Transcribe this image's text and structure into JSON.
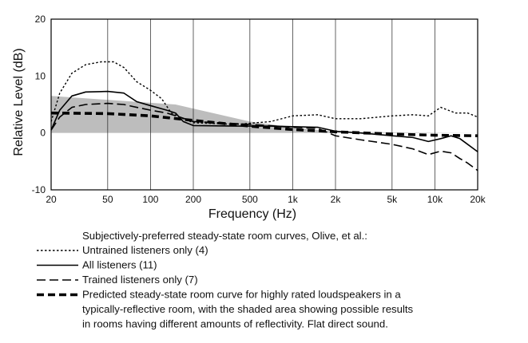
{
  "chart_data": {
    "type": "line",
    "xlabel": "Frequency (Hz)",
    "ylabel": "Relative Level (dB)",
    "xscale": "log",
    "xlim": [
      20,
      20000
    ],
    "ylim": [
      -10,
      20
    ],
    "x_ticks": [
      {
        "value": 20,
        "label": "20"
      },
      {
        "value": 50,
        "label": "50"
      },
      {
        "value": 100,
        "label": "100"
      },
      {
        "value": 200,
        "label": "200"
      },
      {
        "value": 500,
        "label": "500"
      },
      {
        "value": 1000,
        "label": "1k"
      },
      {
        "value": 2000,
        "label": "2k"
      },
      {
        "value": 5000,
        "label": "5k"
      },
      {
        "value": 10000,
        "label": "10k"
      },
      {
        "value": 20000,
        "label": "20k"
      }
    ],
    "y_ticks": [
      {
        "value": 20,
        "label": "20"
      },
      {
        "value": 10,
        "label": "10"
      },
      {
        "value": 0,
        "label": "0"
      },
      {
        "value": -10,
        "label": "-10"
      }
    ],
    "grid": "vertical",
    "shaded_band": {
      "color": "#bdbdbd",
      "upper": [
        [
          20,
          6.5
        ],
        [
          150,
          5.0
        ],
        [
          500,
          2.0
        ],
        [
          1000,
          1.0
        ],
        [
          2000,
          0.2
        ],
        [
          20000,
          0
        ]
      ],
      "lower": [
        [
          20,
          0
        ],
        [
          20000,
          0
        ]
      ]
    },
    "series": [
      {
        "name": "Untrained listeners only (4)",
        "style": "dotted",
        "color": "#000000",
        "points": [
          [
            20,
            2
          ],
          [
            23,
            7
          ],
          [
            28,
            10.5
          ],
          [
            35,
            12
          ],
          [
            45,
            12.5
          ],
          [
            55,
            12.5
          ],
          [
            65,
            11.5
          ],
          [
            80,
            9
          ],
          [
            100,
            7.5
          ],
          [
            120,
            6
          ],
          [
            140,
            3.5
          ],
          [
            170,
            2.5
          ],
          [
            200,
            1.8
          ],
          [
            400,
            1.5
          ],
          [
            700,
            2
          ],
          [
            1000,
            3
          ],
          [
            1500,
            3.2
          ],
          [
            2000,
            2.5
          ],
          [
            3000,
            2.5
          ],
          [
            5000,
            3
          ],
          [
            7000,
            3.2
          ],
          [
            9000,
            3
          ],
          [
            11000,
            4.5
          ],
          [
            14000,
            3.5
          ],
          [
            17000,
            3.5
          ],
          [
            20000,
            2.8
          ]
        ]
      },
      {
        "name": "All listeners (11)",
        "style": "solid",
        "color": "#000000",
        "points": [
          [
            20,
            0.5
          ],
          [
            23,
            4
          ],
          [
            28,
            6.5
          ],
          [
            35,
            7.2
          ],
          [
            50,
            7.3
          ],
          [
            65,
            7
          ],
          [
            80,
            5.5
          ],
          [
            100,
            4.8
          ],
          [
            130,
            4
          ],
          [
            150,
            3.5
          ],
          [
            170,
            2
          ],
          [
            200,
            1.3
          ],
          [
            400,
            1.2
          ],
          [
            700,
            1.2
          ],
          [
            1000,
            1.1
          ],
          [
            1500,
            1
          ],
          [
            2000,
            0.3
          ],
          [
            3000,
            0
          ],
          [
            5000,
            -0.5
          ],
          [
            7000,
            -0.8
          ],
          [
            9000,
            -1.5
          ],
          [
            11000,
            -1
          ],
          [
            13000,
            -0.5
          ],
          [
            15000,
            -1
          ],
          [
            17000,
            -2
          ],
          [
            20000,
            -3.3
          ]
        ]
      },
      {
        "name": "Trained listeners only (7)",
        "style": "dashed",
        "color": "#000000",
        "points": [
          [
            20,
            0.5
          ],
          [
            23,
            2.8
          ],
          [
            28,
            4.5
          ],
          [
            35,
            5
          ],
          [
            50,
            5.2
          ],
          [
            65,
            5
          ],
          [
            80,
            4.5
          ],
          [
            100,
            4
          ],
          [
            130,
            3.5
          ],
          [
            160,
            2.8
          ],
          [
            200,
            2
          ],
          [
            300,
            1.8
          ],
          [
            500,
            1.5
          ],
          [
            1000,
            1
          ],
          [
            1500,
            0.8
          ],
          [
            2000,
            -0.5
          ],
          [
            3000,
            -1.2
          ],
          [
            5000,
            -2
          ],
          [
            7000,
            -2.8
          ],
          [
            9000,
            -3.8
          ],
          [
            11000,
            -3.2
          ],
          [
            13000,
            -3.5
          ],
          [
            15000,
            -4.5
          ],
          [
            17000,
            -5.3
          ],
          [
            20000,
            -6.6
          ]
        ]
      },
      {
        "name": "Predicted steady-state room curve for highly rated loudspeakers in a typically-reflective room, with the shaded area showing possible results in rooms having different amounts of reflectivity.  Flat direct sound.",
        "style": "heavy-dashed",
        "color": "#000000",
        "points": [
          [
            20,
            3.5
          ],
          [
            50,
            3.4
          ],
          [
            100,
            3.0
          ],
          [
            200,
            2.2
          ],
          [
            500,
            1.2
          ],
          [
            1000,
            0.6
          ],
          [
            2000,
            0.2
          ],
          [
            5000,
            -0.2
          ],
          [
            10000,
            -0.4
          ],
          [
            20000,
            -0.5
          ]
        ]
      }
    ],
    "legend": {
      "placement": "below",
      "heading": "Subjectively-preferred steady-state room curves, Olive, et al.:",
      "entries": [
        {
          "style": "dotted",
          "lines": [
            "Untrained listeners only (4)"
          ]
        },
        {
          "style": "solid",
          "lines": [
            "All listeners (11)"
          ]
        },
        {
          "style": "dashed",
          "lines": [
            "Trained listeners only (7)"
          ]
        },
        {
          "style": "heavy-dashed",
          "lines": [
            "Predicted steady-state room curve for highly rated loudspeakers in a",
            "typically-reflective room, with the shaded area showing possible results",
            "in rooms having different amounts of reflectivity.  Flat direct sound."
          ]
        }
      ]
    }
  }
}
